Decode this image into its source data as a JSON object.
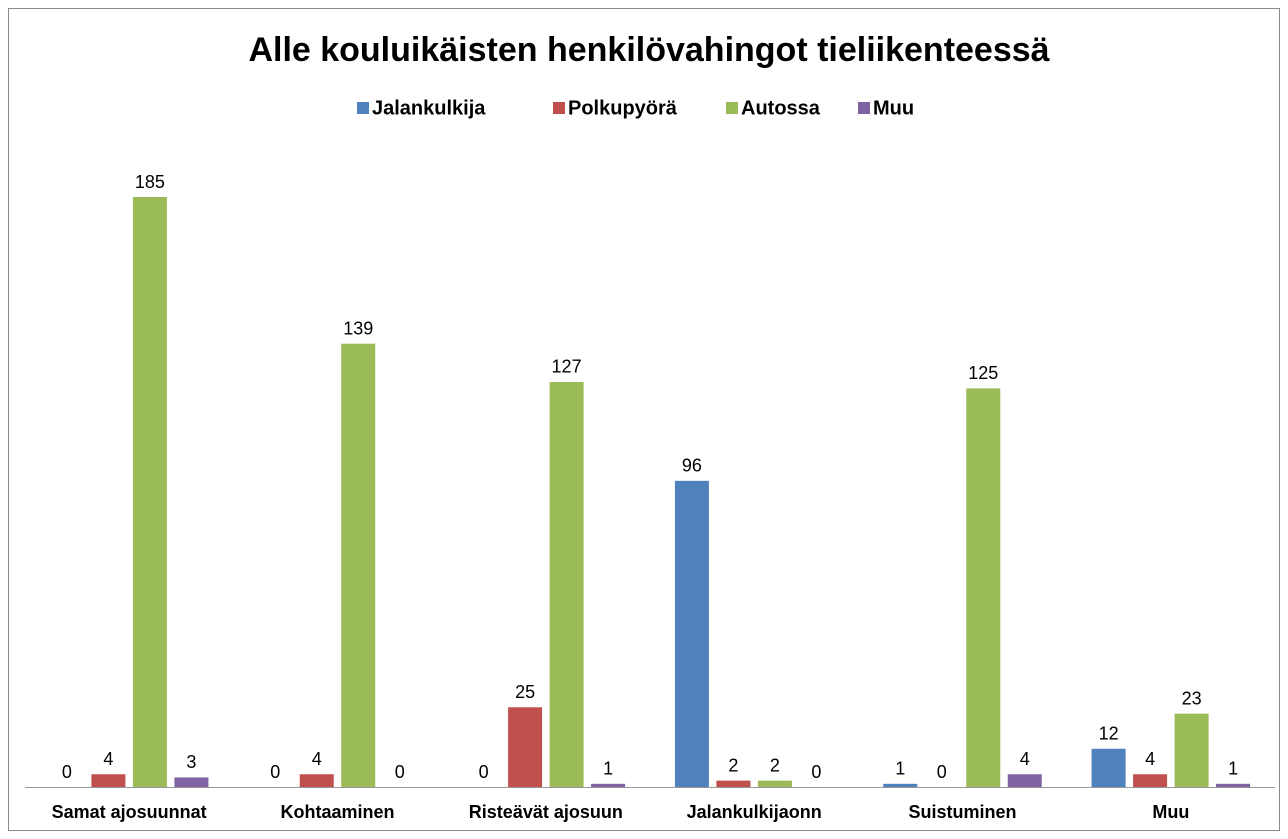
{
  "chart_data": {
    "type": "bar",
    "title": "Alle kouluikäisten henkilövahingot tieliikenteessä",
    "categories": [
      "Samat ajosuunnat",
      "Kohtaaminen",
      "Risteävät ajosuun",
      "Jalankulkijaonn",
      "Suistuminen",
      "Muu"
    ],
    "series": [
      {
        "name": "Jalankulkija",
        "color": "#4f81bd",
        "values": [
          0,
          0,
          0,
          96,
          1,
          12
        ]
      },
      {
        "name": "Polkupyörä",
        "color": "#c0504d",
        "values": [
          4,
          4,
          25,
          2,
          0,
          4
        ]
      },
      {
        "name": "Autossa",
        "color": "#9bbb59",
        "values": [
          185,
          139,
          127,
          2,
          125,
          23
        ]
      },
      {
        "name": "Muu",
        "color": "#8064a2",
        "values": [
          3,
          0,
          1,
          0,
          4,
          1
        ]
      }
    ],
    "legend": "top"
  }
}
